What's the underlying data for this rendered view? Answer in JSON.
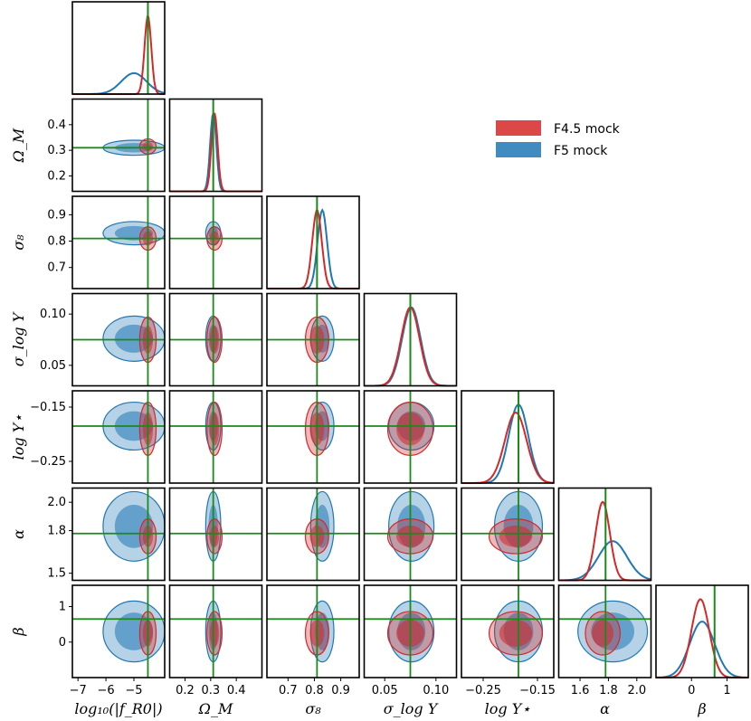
{
  "chart_data": {
    "type": "corner",
    "colors": {
      "red": "#d62728",
      "blue": "#1f77b4",
      "truth": "#1a8a1a",
      "red_fill": "#d62728",
      "blue_fill": "#1f77b4"
    },
    "legend": [
      {
        "label": "F4.5 mock",
        "color": "#d62728"
      },
      {
        "label": "F5 mock",
        "color": "#1f77b4"
      }
    ],
    "parameters": [
      {
        "id": "fr0",
        "label": "log₁₀(|f_R0|)",
        "range": [
          -7.2,
          -3.9
        ],
        "ticks": [
          -7,
          -6,
          -5
        ],
        "tick_labels": [
          "−7",
          "−6",
          "−5"
        ],
        "truth": -4.5,
        "red_mean": -4.5,
        "red_sd": 0.12,
        "blue_mean": -5.0,
        "blue_sd": 0.45
      },
      {
        "id": "om",
        "label": "Ω_M",
        "range": [
          0.14,
          0.5
        ],
        "ticks": [
          0.2,
          0.3,
          0.4
        ],
        "tick_labels": [
          "0.2",
          "0.3",
          "0.4"
        ],
        "truth": 0.31,
        "red_mean": 0.315,
        "red_sd": 0.012,
        "blue_mean": 0.31,
        "blue_sd": 0.012
      },
      {
        "id": "s8",
        "label": "σ₈",
        "range": [
          0.62,
          0.97
        ],
        "ticks": [
          0.7,
          0.8,
          0.9
        ],
        "tick_labels": [
          "0.7",
          "0.8",
          "0.9"
        ],
        "truth": 0.81,
        "red_mean": 0.81,
        "red_sd": 0.018,
        "blue_mean": 0.83,
        "blue_sd": 0.018
      },
      {
        "id": "slogy",
        "label": "σ_log Y",
        "range": [
          0.03,
          0.12
        ],
        "ticks": [
          0.05,
          0.1
        ],
        "tick_labels": [
          "0.05",
          "0.10"
        ],
        "truth": 0.075,
        "red_mean": 0.075,
        "red_sd": 0.009,
        "blue_mean": 0.076,
        "blue_sd": 0.009
      },
      {
        "id": "logy",
        "label": "log Y⋆",
        "range": [
          -0.29,
          -0.12
        ],
        "ticks": [
          -0.25,
          -0.15
        ],
        "tick_labels": [
          "−0.25",
          "−0.15"
        ],
        "truth": -0.185,
        "red_mean": -0.19,
        "red_sd": 0.02,
        "blue_mean": -0.185,
        "blue_sd": 0.018
      },
      {
        "id": "alpha",
        "label": "α",
        "range": [
          1.45,
          2.1
        ],
        "ticks": [
          1.5,
          1.8
        ],
        "tick_labels": [
          "1.5",
          "1.8"
        ],
        "truth": 1.78,
        "red_mean": 1.76,
        "red_sd": 0.05,
        "blue_mean": 1.83,
        "blue_sd": 0.1
      },
      {
        "id": "beta",
        "label": "β",
        "range": [
          -1.0,
          1.6
        ],
        "ticks": [
          0,
          1
        ],
        "tick_labels": [
          "0",
          "1"
        ],
        "truth": 0.65,
        "red_mean": 0.25,
        "red_sd": 0.25,
        "blue_mean": 0.3,
        "blue_sd": 0.35
      }
    ],
    "y_axis_labels": [
      "Ω_M",
      "σ₈",
      "σ_log Y",
      "log Y⋆",
      "α",
      "β"
    ],
    "x_axis_labels": [
      "log₁₀(|f_R0|)",
      "Ω_M",
      "σ₈",
      "σ_log Y",
      "log Y⋆",
      "α",
      "β"
    ],
    "y_tick_sets": [
      {
        "ticks": [
          0.2,
          0.3,
          0.4
        ],
        "labels": [
          "0.2",
          "0.3",
          "0.4"
        ]
      },
      {
        "ticks": [
          0.7,
          0.8,
          0.9
        ],
        "labels": [
          "0.7",
          "0.8",
          "0.9"
        ]
      },
      {
        "ticks": [
          0.05,
          0.1
        ],
        "labels": [
          "0.05",
          "0.10"
        ]
      },
      {
        "ticks": [
          -0.25,
          -0.15
        ],
        "labels": [
          "−0.25",
          "−0.15"
        ]
      },
      {
        "ticks": [
          1.5,
          1.8,
          2.0
        ],
        "labels": [
          "1.5",
          "1.8",
          "2.0"
        ]
      },
      {
        "ticks": [
          0,
          1
        ],
        "labels": [
          "0",
          "1"
        ]
      }
    ],
    "x_extra_ticks": {
      "fr0": [
        -7,
        -6,
        -5
      ],
      "om": [
        0.2,
        0.3,
        0.4
      ],
      "s8": [
        0.7,
        0.8,
        0.9
      ],
      "slogy": [
        0.05,
        0.1
      ],
      "logy": [
        -0.25,
        -0.15
      ],
      "alpha": [
        1.6,
        1.8,
        2.0
      ],
      "beta": [
        0,
        1
      ]
    },
    "x_tick_labels": {
      "fr0": [
        "−7",
        "−6",
        "−5"
      ],
      "om": [
        "0.2",
        "0.3",
        "0.4"
      ],
      "s8": [
        "0.7",
        "0.8",
        "0.9"
      ],
      "slogy": [
        "0.05",
        "0.10"
      ],
      "logy": [
        "−0.25",
        "−0.15"
      ],
      "alpha": [
        "1.6",
        "1.8",
        "2.0"
      ],
      "beta": [
        "0",
        "1"
      ]
    }
  }
}
